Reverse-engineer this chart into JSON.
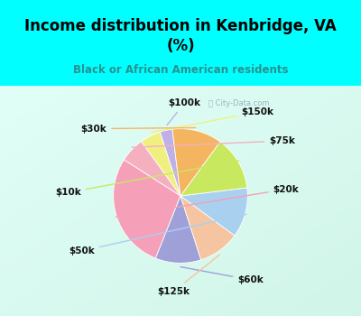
{
  "title": "Income distribution in Kenbridge, VA\n(%)",
  "subtitle": "Black or African American residents",
  "title_color": "#000000",
  "subtitle_color": "#2a9090",
  "background_cyan": "#00ffff",
  "watermark": "City-Data.com",
  "labels": [
    "$100k",
    "$150k",
    "$75k",
    "$20k",
    "$60k",
    "$125k",
    "$50k",
    "$10k",
    "$30k"
  ],
  "values": [
    3,
    5,
    6,
    28,
    11,
    10,
    12,
    13,
    12
  ],
  "wedge_colors": [
    "#c0b0e8",
    "#f0f080",
    "#f5b0c0",
    "#f5a0b8",
    "#a0a0d8",
    "#f5c4a0",
    "#aad0f0",
    "#c8e860",
    "#f5b460"
  ],
  "startangle": 97
}
